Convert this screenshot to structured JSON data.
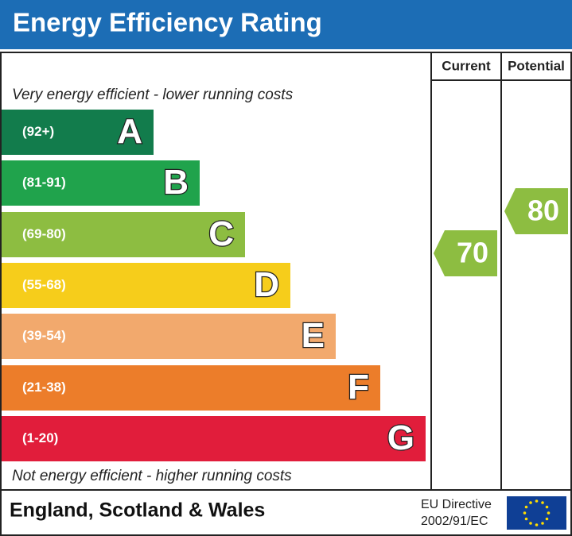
{
  "header": {
    "title": "Energy Efficiency Rating"
  },
  "columns": [
    "Current",
    "Potential"
  ],
  "top_note": "Very energy efficient - lower running costs",
  "bands": [
    {
      "range": "(92+)",
      "letter": "A",
      "color": "#127c4c"
    },
    {
      "range": "(81-91)",
      "letter": "B",
      "color": "#20a34c"
    },
    {
      "range": "(69-80)",
      "letter": "C",
      "color": "#8dbd41"
    },
    {
      "range": "(55-68)",
      "letter": "D",
      "color": "#f6cd1b"
    },
    {
      "range": "(39-54)",
      "letter": "E",
      "color": "#f2a96d"
    },
    {
      "range": "(21-38)",
      "letter": "F",
      "color": "#ec7d2a"
    },
    {
      "range": "(1-20)",
      "letter": "G",
      "color": "#e11d3b"
    }
  ],
  "bottom_note": "Not energy efficient - higher running costs",
  "current": 70,
  "potential": 80,
  "footer": {
    "region": "England, Scotland & Wales",
    "directive": [
      "EU Directive",
      "2002/91/EC"
    ]
  }
}
